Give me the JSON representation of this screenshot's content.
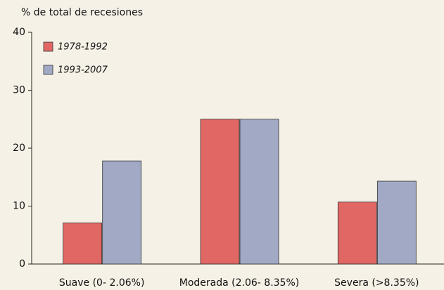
{
  "chart_data": {
    "type": "bar",
    "title": "% de total de recesiones",
    "categories": [
      "Suave (0- 2.06%)",
      "Moderada (2.06- 8.35%)",
      "Severa (>8.35%)"
    ],
    "series": [
      {
        "name": "1978-1992",
        "color": "#e06764",
        "values": [
          7.1,
          25,
          10.7
        ]
      },
      {
        "name": "1993-2007",
        "color": "#a1a9c5",
        "values": [
          17.8,
          25,
          14.3
        ]
      }
    ],
    "ylim": [
      0,
      40
    ],
    "yticks": [
      0,
      10,
      20,
      30,
      40
    ],
    "grid": false,
    "legend": "top-left"
  }
}
